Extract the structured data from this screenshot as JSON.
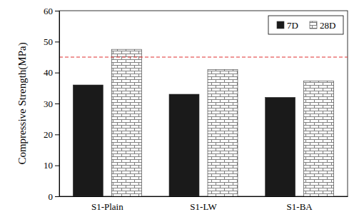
{
  "chart_data": {
    "type": "bar",
    "y_label": "Compressive Strength(MPa)",
    "categories": [
      "S1-Plain",
      "S1-LW",
      "S1-BA"
    ],
    "series": [
      {
        "name": "7D",
        "color": "#1a1a1a",
        "values": [
          36,
          33,
          32
        ]
      },
      {
        "name": "28D",
        "color": "#808080",
        "values": [
          47.5,
          41,
          37.3
        ]
      }
    ],
    "threshold": 45,
    "ylim": [
      0,
      60
    ],
    "yticks": [
      0,
      10,
      20,
      30,
      40,
      50,
      60
    ],
    "grid": false,
    "legend": "upper right"
  }
}
